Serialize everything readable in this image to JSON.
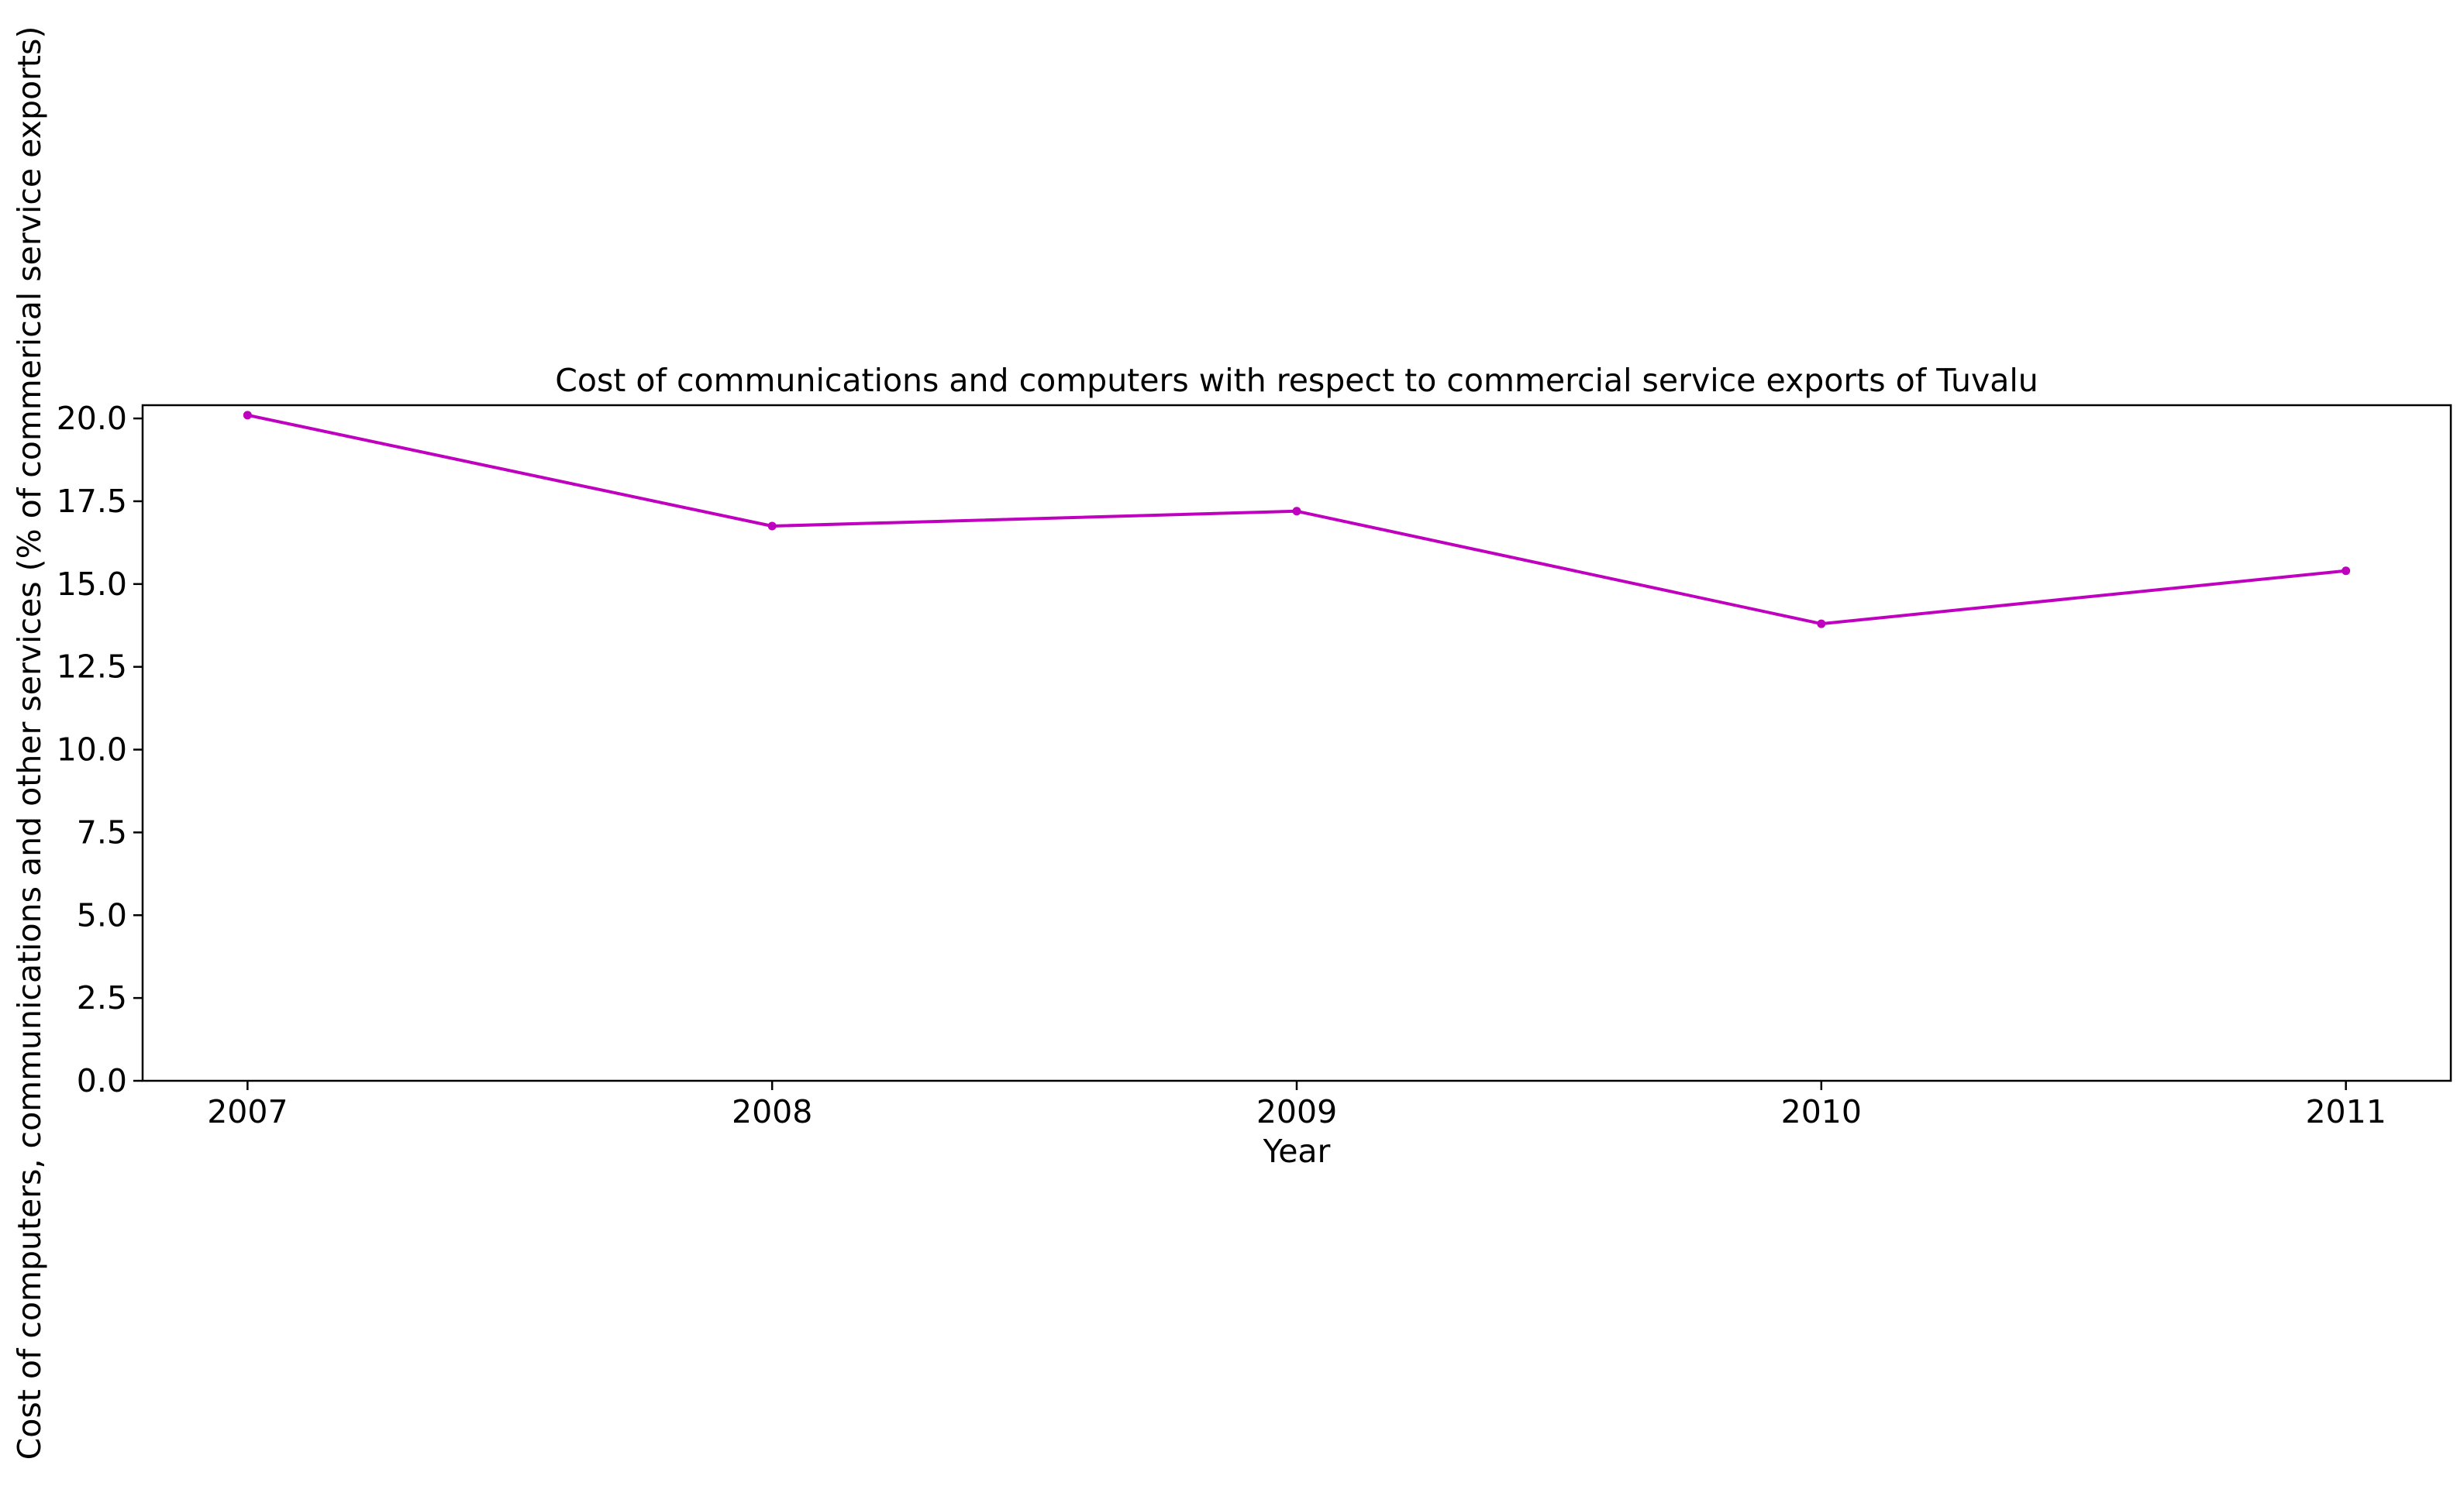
{
  "chart_data": {
    "type": "line",
    "title": "Cost of communications and computers with respect to commercial service exports of Tuvalu",
    "xlabel": "Year",
    "ylabel": "Cost of computers, communications and other services (% of commerical service exports)",
    "x": [
      "2007",
      "2008",
      "2009",
      "2010",
      "2011"
    ],
    "series": [
      {
        "values": [
          20.1,
          16.75,
          17.2,
          13.8,
          15.4
        ],
        "color": "#bf00bf",
        "marker": "circle"
      }
    ],
    "ylim": [
      0,
      20.4
    ],
    "yticks": [
      "0.0",
      "2.5",
      "5.0",
      "7.5",
      "10.0",
      "12.5",
      "15.0",
      "17.5",
      "20.0"
    ],
    "xlim": [
      2006.8,
      2011.2
    ],
    "grid": false,
    "legend": "none"
  }
}
